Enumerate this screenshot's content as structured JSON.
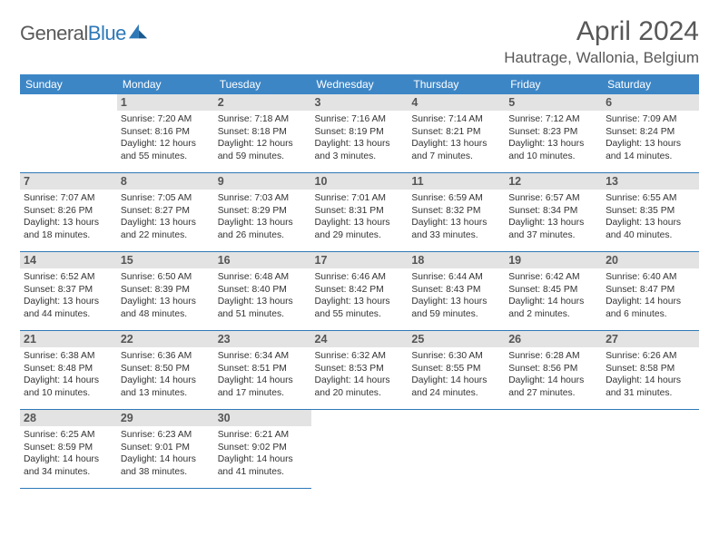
{
  "brand": {
    "part1": "General",
    "part2": "Blue"
  },
  "title": "April 2024",
  "location": "Hautrage, Wallonia, Belgium",
  "colors": {
    "header_bg": "#3d86c6",
    "header_text": "#ffffff",
    "daynum_bg": "#e3e3e3",
    "border": "#2d79b8",
    "text": "#333333",
    "title_text": "#585858"
  },
  "typography": {
    "title_fontsize": 30,
    "location_fontsize": 17,
    "header_fontsize": 12,
    "daynum_fontsize": 12.5,
    "info_fontsize": 10.3
  },
  "layout": {
    "columns": 7,
    "rows": 5,
    "start_weekday": "Sunday",
    "first_day_column": 1
  },
  "weekdays": [
    "Sunday",
    "Monday",
    "Tuesday",
    "Wednesday",
    "Thursday",
    "Friday",
    "Saturday"
  ],
  "days": [
    {
      "n": "1",
      "sr": "7:20 AM",
      "ss": "8:16 PM",
      "dl": "12 hours and 55 minutes."
    },
    {
      "n": "2",
      "sr": "7:18 AM",
      "ss": "8:18 PM",
      "dl": "12 hours and 59 minutes."
    },
    {
      "n": "3",
      "sr": "7:16 AM",
      "ss": "8:19 PM",
      "dl": "13 hours and 3 minutes."
    },
    {
      "n": "4",
      "sr": "7:14 AM",
      "ss": "8:21 PM",
      "dl": "13 hours and 7 minutes."
    },
    {
      "n": "5",
      "sr": "7:12 AM",
      "ss": "8:23 PM",
      "dl": "13 hours and 10 minutes."
    },
    {
      "n": "6",
      "sr": "7:09 AM",
      "ss": "8:24 PM",
      "dl": "13 hours and 14 minutes."
    },
    {
      "n": "7",
      "sr": "7:07 AM",
      "ss": "8:26 PM",
      "dl": "13 hours and 18 minutes."
    },
    {
      "n": "8",
      "sr": "7:05 AM",
      "ss": "8:27 PM",
      "dl": "13 hours and 22 minutes."
    },
    {
      "n": "9",
      "sr": "7:03 AM",
      "ss": "8:29 PM",
      "dl": "13 hours and 26 minutes."
    },
    {
      "n": "10",
      "sr": "7:01 AM",
      "ss": "8:31 PM",
      "dl": "13 hours and 29 minutes."
    },
    {
      "n": "11",
      "sr": "6:59 AM",
      "ss": "8:32 PM",
      "dl": "13 hours and 33 minutes."
    },
    {
      "n": "12",
      "sr": "6:57 AM",
      "ss": "8:34 PM",
      "dl": "13 hours and 37 minutes."
    },
    {
      "n": "13",
      "sr": "6:55 AM",
      "ss": "8:35 PM",
      "dl": "13 hours and 40 minutes."
    },
    {
      "n": "14",
      "sr": "6:52 AM",
      "ss": "8:37 PM",
      "dl": "13 hours and 44 minutes."
    },
    {
      "n": "15",
      "sr": "6:50 AM",
      "ss": "8:39 PM",
      "dl": "13 hours and 48 minutes."
    },
    {
      "n": "16",
      "sr": "6:48 AM",
      "ss": "8:40 PM",
      "dl": "13 hours and 51 minutes."
    },
    {
      "n": "17",
      "sr": "6:46 AM",
      "ss": "8:42 PM",
      "dl": "13 hours and 55 minutes."
    },
    {
      "n": "18",
      "sr": "6:44 AM",
      "ss": "8:43 PM",
      "dl": "13 hours and 59 minutes."
    },
    {
      "n": "19",
      "sr": "6:42 AM",
      "ss": "8:45 PM",
      "dl": "14 hours and 2 minutes."
    },
    {
      "n": "20",
      "sr": "6:40 AM",
      "ss": "8:47 PM",
      "dl": "14 hours and 6 minutes."
    },
    {
      "n": "21",
      "sr": "6:38 AM",
      "ss": "8:48 PM",
      "dl": "14 hours and 10 minutes."
    },
    {
      "n": "22",
      "sr": "6:36 AM",
      "ss": "8:50 PM",
      "dl": "14 hours and 13 minutes."
    },
    {
      "n": "23",
      "sr": "6:34 AM",
      "ss": "8:51 PM",
      "dl": "14 hours and 17 minutes."
    },
    {
      "n": "24",
      "sr": "6:32 AM",
      "ss": "8:53 PM",
      "dl": "14 hours and 20 minutes."
    },
    {
      "n": "25",
      "sr": "6:30 AM",
      "ss": "8:55 PM",
      "dl": "14 hours and 24 minutes."
    },
    {
      "n": "26",
      "sr": "6:28 AM",
      "ss": "8:56 PM",
      "dl": "14 hours and 27 minutes."
    },
    {
      "n": "27",
      "sr": "6:26 AM",
      "ss": "8:58 PM",
      "dl": "14 hours and 31 minutes."
    },
    {
      "n": "28",
      "sr": "6:25 AM",
      "ss": "8:59 PM",
      "dl": "14 hours and 34 minutes."
    },
    {
      "n": "29",
      "sr": "6:23 AM",
      "ss": "9:01 PM",
      "dl": "14 hours and 38 minutes."
    },
    {
      "n": "30",
      "sr": "6:21 AM",
      "ss": "9:02 PM",
      "dl": "14 hours and 41 minutes."
    }
  ],
  "labels": {
    "sunrise": "Sunrise:",
    "sunset": "Sunset:",
    "daylight": "Daylight:"
  }
}
